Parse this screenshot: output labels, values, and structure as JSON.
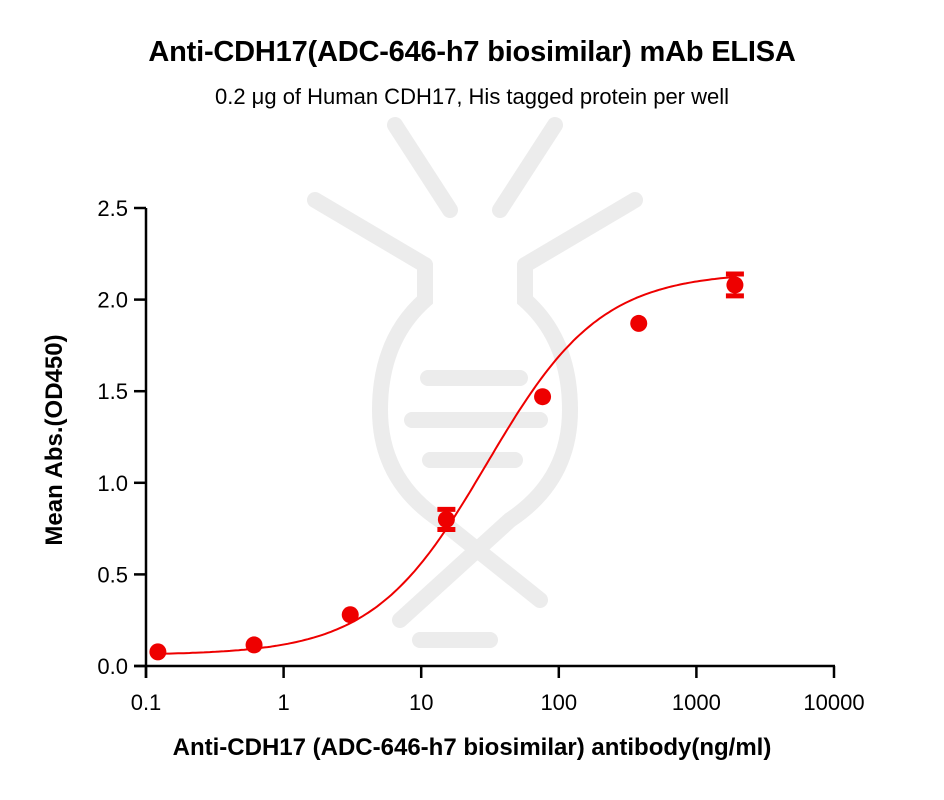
{
  "chart_data": {
    "type": "scatter",
    "title": "Anti-CDH17(ADC-646-h7 biosimilar) mAb ELISA",
    "subtitle": "0.2 μg of Human CDH17, His tagged protein per well",
    "xlabel": "Anti-CDH17 (ADC-646-h7 biosimilar) antibody(ng/ml)",
    "ylabel": "Mean Abs.(OD450)",
    "xscale": "log",
    "xlim": [
      0.1,
      10000
    ],
    "ylim": [
      0,
      2.5
    ],
    "xticks": [
      0.1,
      1,
      10,
      100,
      1000,
      10000
    ],
    "xtick_labels": [
      "0.1",
      "1",
      "10",
      "100",
      "1000",
      "10000"
    ],
    "yticks": [
      0,
      0.5,
      1.0,
      1.5,
      2.0,
      2.5
    ],
    "ytick_labels": [
      "0.0",
      "0.5",
      "1.0",
      "1.5",
      "2.0",
      "2.5"
    ],
    "grid": false,
    "legend": null,
    "series": [
      {
        "name": "Anti-CDH17 (ADC-646-h7 biosimilar)",
        "color": "#ee0000",
        "marker": "circle",
        "fit": "4-parameter logistic curve",
        "x": [
          0.122,
          0.61,
          3.05,
          15.24,
          76.2,
          381,
          1905
        ],
        "y": [
          0.077,
          0.115,
          0.28,
          0.8,
          1.47,
          1.87,
          2.08
        ],
        "error": [
          0.0,
          0.0,
          0.0,
          0.055,
          0.0,
          0.0,
          0.06
        ]
      }
    ]
  },
  "watermark": "dna-logo-watermark"
}
